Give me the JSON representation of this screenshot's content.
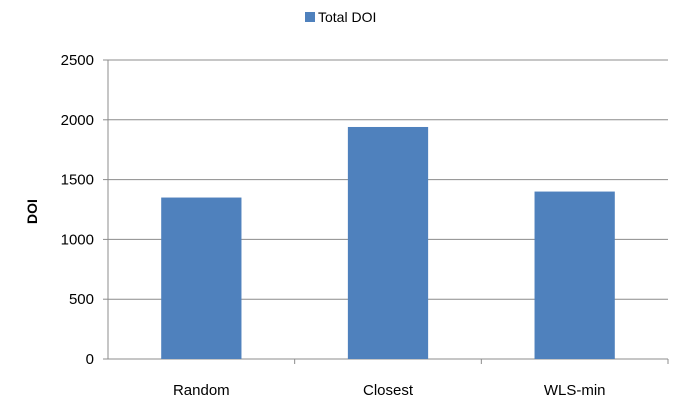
{
  "chart_data": {
    "type": "bar",
    "title": "",
    "xlabel": "",
    "ylabel": "DOI",
    "categories": [
      "Random",
      "Closest",
      "WLS-min"
    ],
    "series": [
      {
        "name": "Total DOI",
        "values": [
          1350,
          1940,
          1400
        ],
        "color": "#4F81BD"
      }
    ],
    "ylim": [
      0,
      2500
    ],
    "yticks": [
      0,
      500,
      1000,
      1500,
      2000,
      2500
    ],
    "grid": true,
    "legend_position": "top"
  }
}
